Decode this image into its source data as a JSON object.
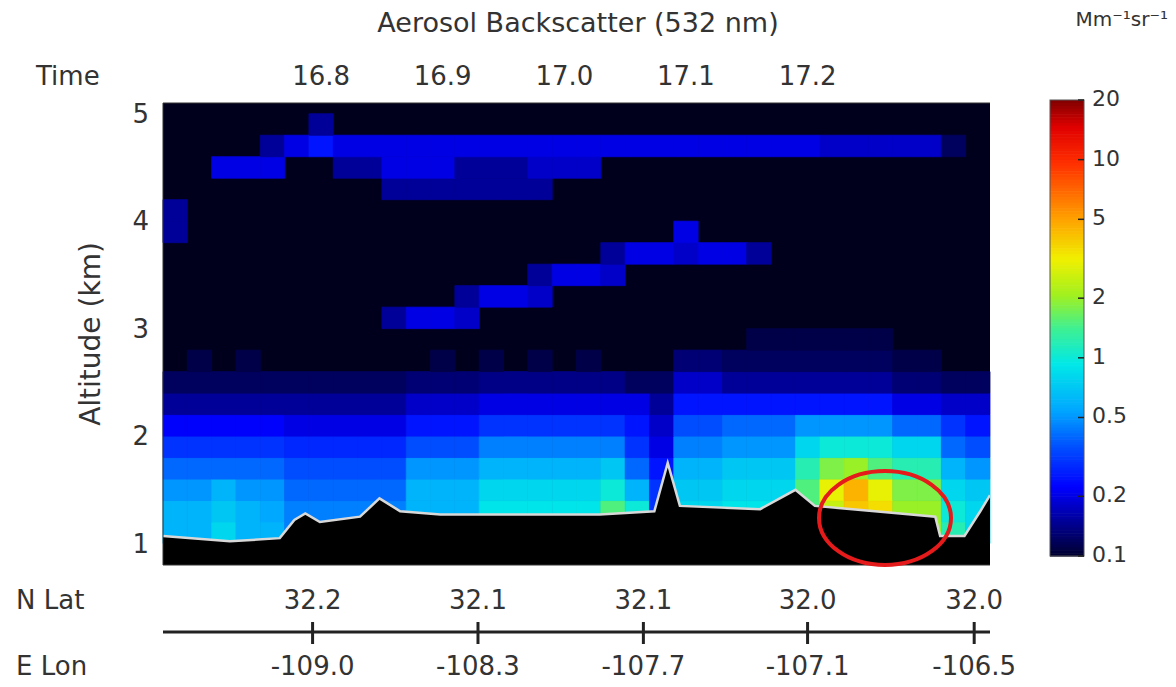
{
  "chart_data": {
    "type": "heatmap",
    "title": "Aerosol Backscatter (532 nm)",
    "xlabel": "Time",
    "ylabel": "Altitude (km)",
    "xlim": [
      16.67,
      17.35
    ],
    "xticks": [
      16.8,
      16.9,
      {
        "value": 17,
        "label": "17.0"
      },
      17.1,
      17.2
    ],
    "ylim": [
      0.8,
      5.1
    ],
    "yticks": [
      1,
      2,
      3,
      4,
      5
    ],
    "grid": false,
    "lat_label": "N Lat",
    "lat_ticks": [
      {
        "value": 16.793,
        "label": "32.2"
      },
      {
        "value": 16.929,
        "label": "32.1"
      },
      {
        "value": 17.065,
        "label": "32.1"
      },
      {
        "value": 17.2,
        "label": "32.0"
      },
      {
        "value": 17.337,
        "label": "32.0"
      }
    ],
    "lon_label": "E Lon",
    "lon_ticks": [
      {
        "value": 16.793,
        "label": "-109.0"
      },
      {
        "value": 16.929,
        "label": "-108.3"
      },
      {
        "value": 17.065,
        "label": "-107.7"
      },
      {
        "value": 17.2,
        "label": "-107.1"
      },
      {
        "value": 17.337,
        "label": "-106.5"
      }
    ],
    "cells": {
      "x": [
        16.68,
        16.7,
        16.72,
        16.74,
        16.76,
        16.78,
        16.8,
        16.82,
        16.84,
        16.86,
        16.88,
        16.9,
        16.92,
        16.94,
        16.96,
        16.98,
        17.0,
        17.02,
        17.04,
        17.06,
        17.08,
        17.1,
        17.12,
        17.14,
        17.16,
        17.18,
        17.2,
        17.22,
        17.24,
        17.26,
        17.28,
        17.3,
        17.32,
        17.34
      ],
      "y": [
        1.1,
        1.3,
        1.5,
        1.7,
        1.9,
        2.1,
        2.3,
        2.5,
        2.7,
        2.9,
        3.1,
        3.3,
        3.5,
        3.7,
        3.9,
        4.1,
        4.3,
        4.5,
        4.7,
        4.9
      ],
      "values": [
        [
          0.6,
          0.6,
          0.8,
          0.6,
          0.6,
          0.45,
          0.45,
          0.45,
          0.45,
          0.45,
          0.6,
          0.6,
          0.6,
          0.9,
          0.9,
          0.9,
          0.9,
          0.9,
          1.5,
          1.0,
          0.3,
          0.8,
          0.8,
          0.9,
          0.9,
          0.9,
          1.5,
          2.5,
          4,
          3.5,
          2,
          2,
          1.2,
          0.8
        ],
        [
          0.6,
          0.6,
          0.7,
          0.6,
          0.55,
          0.45,
          0.45,
          0.45,
          0.45,
          0.45,
          0.6,
          0.6,
          0.6,
          0.9,
          0.9,
          0.9,
          0.9,
          0.9,
          1.5,
          1.0,
          0.3,
          0.8,
          0.8,
          0.9,
          0.9,
          0.9,
          1.5,
          2.5,
          4,
          3.5,
          2,
          2,
          1.0,
          0.8
        ],
        [
          0.5,
          0.5,
          0.6,
          0.5,
          0.5,
          0.4,
          0.4,
          0.4,
          0.4,
          0.4,
          0.6,
          0.6,
          0.6,
          0.8,
          0.8,
          0.8,
          0.8,
          0.8,
          1.0,
          0.6,
          0.3,
          0.7,
          0.7,
          0.8,
          0.8,
          0.8,
          1.5,
          3,
          4.5,
          3,
          1.8,
          1.8,
          0.8,
          0.7
        ],
        [
          0.4,
          0.4,
          0.4,
          0.4,
          0.4,
          0.35,
          0.35,
          0.35,
          0.35,
          0.35,
          0.5,
          0.5,
          0.5,
          0.6,
          0.6,
          0.6,
          0.6,
          0.6,
          0.7,
          0.4,
          0.25,
          0.6,
          0.6,
          0.7,
          0.7,
          0.7,
          1.2,
          1.8,
          2,
          1.5,
          1.2,
          1.2,
          0.6,
          0.5
        ],
        [
          0.3,
          0.3,
          0.3,
          0.3,
          0.3,
          0.28,
          0.28,
          0.28,
          0.28,
          0.28,
          0.35,
          0.35,
          0.35,
          0.45,
          0.45,
          0.45,
          0.45,
          0.45,
          0.45,
          0.3,
          0.2,
          0.45,
          0.45,
          0.5,
          0.5,
          0.5,
          0.8,
          1.0,
          1.0,
          1.0,
          0.8,
          0.8,
          0.4,
          0.35
        ],
        [
          0.22,
          0.22,
          0.22,
          0.22,
          0.22,
          0.2,
          0.2,
          0.2,
          0.2,
          0.2,
          0.25,
          0.25,
          0.25,
          0.3,
          0.3,
          0.3,
          0.3,
          0.3,
          0.3,
          0.25,
          0.18,
          0.35,
          0.35,
          0.4,
          0.4,
          0.4,
          0.5,
          0.5,
          0.5,
          0.5,
          0.4,
          0.4,
          0.3,
          0.25
        ],
        [
          0.15,
          0.15,
          0.15,
          0.15,
          0.15,
          0.15,
          0.15,
          0.15,
          0.15,
          0.15,
          0.18,
          0.18,
          0.18,
          0.2,
          0.2,
          0.2,
          0.2,
          0.2,
          0.2,
          0.2,
          0.15,
          0.25,
          0.25,
          0.25,
          0.25,
          0.25,
          0.25,
          0.25,
          0.25,
          0.25,
          0.2,
          0.2,
          0.18,
          0.18
        ],
        [
          0.12,
          0.12,
          0.12,
          0.12,
          0.12,
          0.12,
          0.12,
          0.12,
          0.12,
          0.12,
          0.13,
          0.13,
          0.13,
          0.14,
          0.14,
          0.14,
          0.14,
          0.14,
          0.14,
          0.12,
          0.12,
          0.18,
          0.18,
          0.15,
          0.15,
          0.15,
          0.15,
          0.15,
          0.15,
          0.15,
          0.13,
          0.13,
          0.12,
          0.12
        ],
        [
          null,
          0.11,
          null,
          0.11,
          null,
          null,
          null,
          null,
          null,
          null,
          null,
          0.11,
          null,
          0.11,
          null,
          0.11,
          null,
          0.11,
          null,
          null,
          null,
          0.13,
          0.13,
          0.12,
          0.12,
          0.12,
          0.12,
          0.12,
          0.12,
          0.12,
          0.11,
          0.11,
          null,
          null
        ],
        [
          null,
          null,
          null,
          null,
          null,
          null,
          null,
          null,
          null,
          null,
          null,
          null,
          null,
          null,
          null,
          null,
          null,
          null,
          null,
          null,
          null,
          null,
          null,
          null,
          0.11,
          0.11,
          0.11,
          0.11,
          0.11,
          0.11,
          null,
          null,
          null,
          null
        ],
        [
          null,
          null,
          null,
          null,
          null,
          null,
          null,
          null,
          null,
          0.15,
          0.2,
          0.2,
          0.18,
          null,
          null,
          null,
          null,
          null,
          null,
          null,
          null,
          null,
          null,
          null,
          null,
          null,
          null,
          null,
          null,
          null,
          null,
          null,
          null,
          null
        ],
        [
          null,
          null,
          null,
          null,
          null,
          null,
          null,
          null,
          null,
          null,
          null,
          null,
          0.15,
          0.2,
          0.2,
          0.18,
          null,
          null,
          null,
          null,
          null,
          null,
          null,
          null,
          null,
          null,
          null,
          null,
          null,
          null,
          null,
          null,
          null,
          null
        ],
        [
          null,
          null,
          null,
          null,
          null,
          null,
          null,
          null,
          null,
          null,
          null,
          null,
          null,
          null,
          null,
          0.15,
          0.2,
          0.2,
          0.18,
          null,
          null,
          null,
          null,
          null,
          null,
          null,
          null,
          null,
          null,
          null,
          null,
          null,
          null,
          null
        ],
        [
          null,
          null,
          null,
          null,
          null,
          null,
          null,
          null,
          null,
          null,
          null,
          null,
          null,
          null,
          null,
          null,
          null,
          null,
          0.15,
          0.2,
          0.2,
          0.18,
          0.2,
          0.2,
          0.15,
          null,
          null,
          null,
          null,
          null,
          null,
          null,
          null,
          null
        ],
        [
          0.15,
          null,
          null,
          null,
          null,
          null,
          null,
          null,
          null,
          null,
          null,
          null,
          null,
          null,
          null,
          null,
          null,
          null,
          null,
          null,
          null,
          0.2,
          null,
          null,
          null,
          null,
          null,
          null,
          null,
          null,
          null,
          null,
          null,
          null
        ],
        [
          0.15,
          null,
          null,
          null,
          null,
          null,
          null,
          null,
          null,
          null,
          null,
          null,
          null,
          null,
          null,
          null,
          null,
          null,
          null,
          null,
          null,
          null,
          null,
          null,
          null,
          null,
          null,
          null,
          null,
          null,
          null,
          null,
          null,
          null
        ],
        [
          null,
          null,
          null,
          null,
          null,
          null,
          null,
          null,
          null,
          0.15,
          0.15,
          0.15,
          0.15,
          0.15,
          0.15,
          0.15,
          null,
          null,
          null,
          null,
          null,
          null,
          null,
          null,
          null,
          null,
          null,
          null,
          null,
          null,
          null,
          null,
          null,
          null
        ],
        [
          null,
          null,
          0.2,
          0.2,
          0.2,
          null,
          null,
          0.15,
          0.15,
          0.2,
          0.2,
          0.2,
          0.15,
          0.15,
          0.15,
          0.18,
          0.18,
          0.18,
          null,
          null,
          null,
          null,
          null,
          null,
          null,
          null,
          null,
          null,
          null,
          null,
          null,
          null,
          null,
          null
        ],
        [
          null,
          null,
          null,
          null,
          0.15,
          0.2,
          0.25,
          0.2,
          0.2,
          0.2,
          0.2,
          0.2,
          0.2,
          0.2,
          0.2,
          0.2,
          0.2,
          0.2,
          0.2,
          0.2,
          0.2,
          0.2,
          0.2,
          0.2,
          0.2,
          0.2,
          0.2,
          0.18,
          0.18,
          0.18,
          0.18,
          0.18,
          0.12,
          null
        ],
        [
          null,
          null,
          null,
          null,
          null,
          null,
          0.15,
          null,
          null,
          null,
          null,
          null,
          null,
          null,
          null,
          null,
          null,
          null,
          null,
          null,
          null,
          null,
          null,
          null,
          null,
          null,
          null,
          null,
          null,
          null,
          null,
          null,
          null,
          null
        ]
      ]
    },
    "surface": {
      "x": [
        16.67,
        16.725,
        16.766,
        16.778,
        16.787,
        16.799,
        16.832,
        16.848,
        16.865,
        16.898,
        17.029,
        17.074,
        17.085,
        17.095,
        17.161,
        17.19,
        17.206,
        17.276,
        17.305,
        17.309,
        17.329,
        17.342,
        17.35
      ],
      "values": [
        1.07,
        1.02,
        1.05,
        1.22,
        1.28,
        1.2,
        1.25,
        1.42,
        1.3,
        1.27,
        1.27,
        1.3,
        1.75,
        1.35,
        1.32,
        1.5,
        1.35,
        1.28,
        1.25,
        1.07,
        1.07,
        1.3,
        1.45
      ]
    },
    "colorbar": {
      "label": "Mm⁻¹sr⁻¹",
      "range": [
        0.1,
        20
      ],
      "ticks": [
        0.1,
        0.2,
        0.5,
        1,
        2,
        5,
        10,
        20
      ],
      "log": true
    }
  }
}
